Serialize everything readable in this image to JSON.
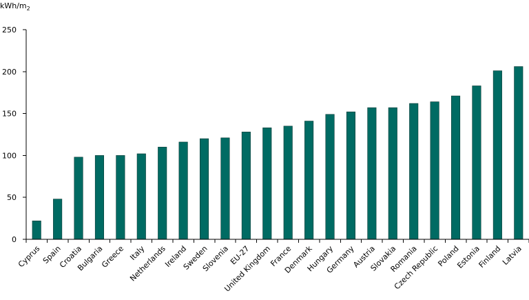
{
  "chart_data": {
    "type": "bar",
    "ylabel": "kWh/m",
    "ylabel_subscript": "2",
    "categories": [
      "Cyprus",
      "Spain",
      "Croatia",
      "Bulgaria",
      "Greece",
      "Italy",
      "Netherlands",
      "Ireland",
      "Sweden",
      "Slovenia",
      "EU-27",
      "United Kingdom",
      "France",
      "Denmark",
      "Hungary",
      "Germany",
      "Austria",
      "Slovakia",
      "Romania",
      "Czech Republic",
      "Poland",
      "Estonia",
      "Finland",
      "Latvia"
    ],
    "values": [
      22,
      48,
      98,
      100,
      100,
      102,
      110,
      116,
      120,
      121,
      128,
      133,
      135,
      141,
      149,
      152,
      157,
      157,
      162,
      164,
      171,
      183,
      201,
      206
    ],
    "ylim": [
      0,
      250
    ],
    "yticks": [
      0,
      50,
      100,
      150,
      200,
      250
    ],
    "grid": false,
    "legend": "none",
    "colors": {
      "bar": "#006b63",
      "bar_outline": "#0b3a35"
    }
  }
}
